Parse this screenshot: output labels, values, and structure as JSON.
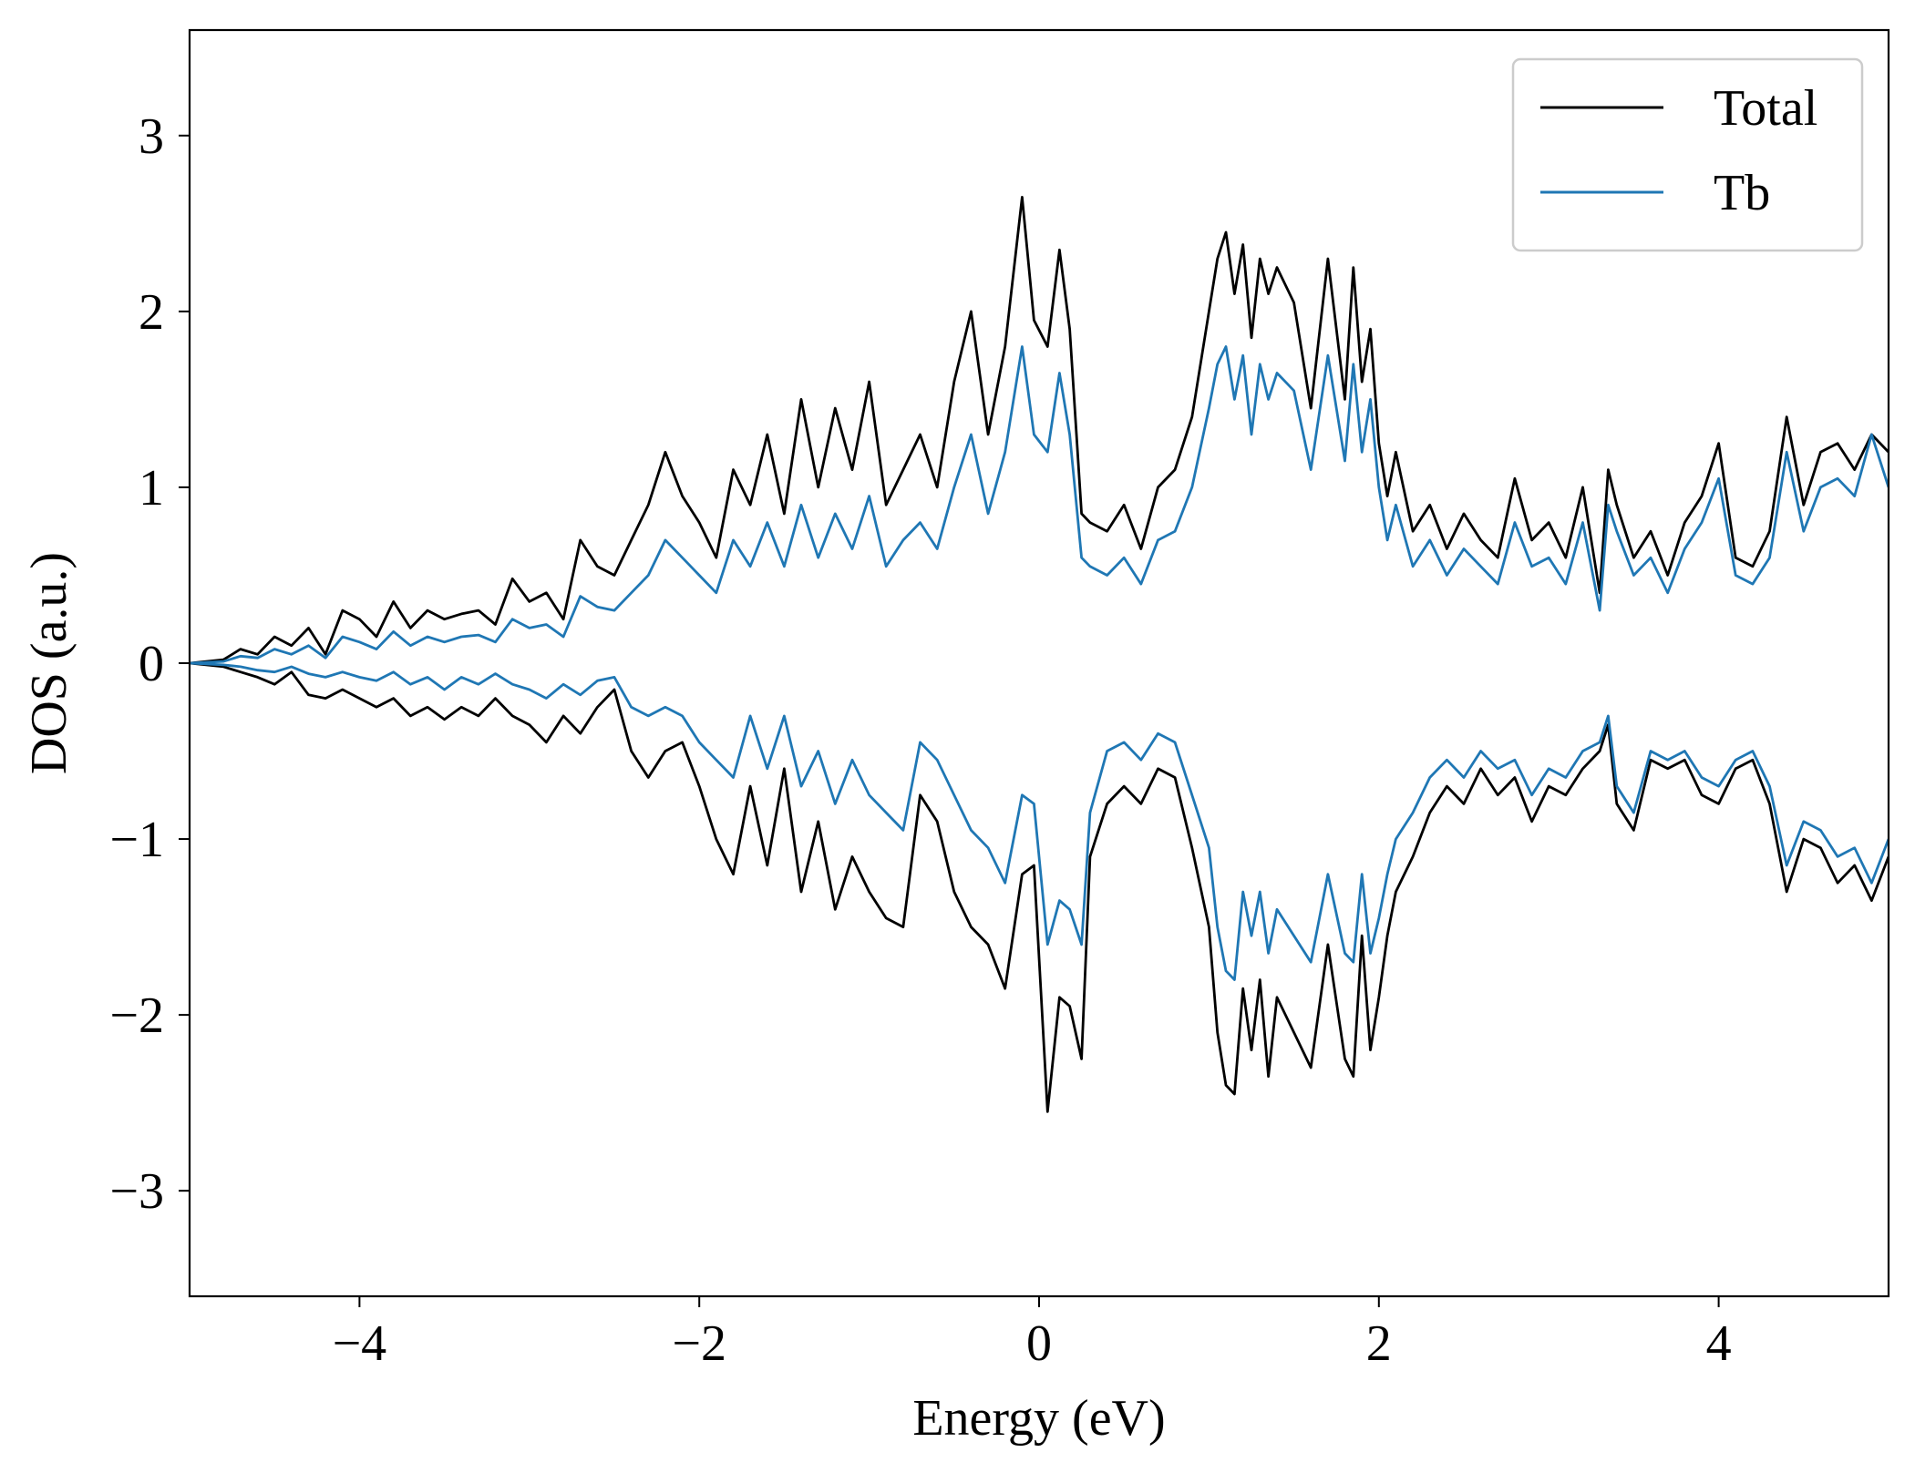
{
  "chart_data": {
    "type": "line",
    "title": "",
    "xlabel": "Energy (eV)",
    "ylabel": "DOS (a.u.)",
    "xlim": [
      -5,
      5
    ],
    "ylim": [
      -3.6,
      3.6
    ],
    "grid": false,
    "legend_position": "top-right",
    "x_ticks": [
      -4,
      -2,
      0,
      2,
      4
    ],
    "x_tick_labels": [
      "−4",
      "−2",
      "0",
      "2",
      "4"
    ],
    "y_ticks": [
      -3,
      -2,
      -1,
      0,
      1,
      2,
      3
    ],
    "y_tick_labels": [
      "−3",
      "−2",
      "−1",
      "0",
      "1",
      "2",
      "3"
    ],
    "series": [
      {
        "name": "Total",
        "color": "#000000",
        "spin_up": {
          "x": [
            -5.0,
            -4.8,
            -4.7,
            -4.6,
            -4.5,
            -4.4,
            -4.3,
            -4.2,
            -4.1,
            -4.0,
            -3.9,
            -3.8,
            -3.7,
            -3.6,
            -3.5,
            -3.4,
            -3.3,
            -3.2,
            -3.1,
            -3.0,
            -2.9,
            -2.8,
            -2.7,
            -2.6,
            -2.5,
            -2.4,
            -2.3,
            -2.2,
            -2.1,
            -2.0,
            -1.9,
            -1.8,
            -1.7,
            -1.6,
            -1.5,
            -1.4,
            -1.3,
            -1.2,
            -1.1,
            -1.0,
            -0.9,
            -0.8,
            -0.7,
            -0.6,
            -0.5,
            -0.4,
            -0.3,
            -0.2,
            -0.1,
            -0.03,
            0.05,
            0.12,
            0.18,
            0.25,
            0.3,
            0.4,
            0.5,
            0.6,
            0.7,
            0.8,
            0.9,
            1.0,
            1.05,
            1.1,
            1.15,
            1.2,
            1.25,
            1.3,
            1.35,
            1.4,
            1.5,
            1.6,
            1.7,
            1.8,
            1.85,
            1.9,
            1.95,
            2.0,
            2.05,
            2.1,
            2.2,
            2.3,
            2.4,
            2.5,
            2.6,
            2.7,
            2.8,
            2.9,
            3.0,
            3.1,
            3.2,
            3.3,
            3.35,
            3.4,
            3.5,
            3.6,
            3.7,
            3.8,
            3.9,
            4.0,
            4.1,
            4.2,
            4.3,
            4.4,
            4.5,
            4.6,
            4.7,
            4.8,
            4.9,
            5.0
          ],
          "y": [
            0.0,
            0.02,
            0.08,
            0.05,
            0.15,
            0.1,
            0.2,
            0.05,
            0.3,
            0.25,
            0.15,
            0.35,
            0.2,
            0.3,
            0.25,
            0.28,
            0.3,
            0.22,
            0.48,
            0.35,
            0.4,
            0.25,
            0.7,
            0.55,
            0.5,
            0.7,
            0.9,
            1.2,
            0.95,
            0.8,
            0.6,
            1.1,
            0.9,
            1.3,
            0.85,
            1.5,
            1.0,
            1.45,
            1.1,
            1.6,
            0.9,
            1.1,
            1.3,
            1.0,
            1.6,
            2.0,
            1.3,
            1.8,
            2.65,
            1.95,
            1.8,
            2.35,
            1.9,
            0.85,
            0.8,
            0.75,
            0.9,
            0.65,
            1.0,
            1.1,
            1.4,
            2.0,
            2.3,
            2.45,
            2.1,
            2.38,
            1.85,
            2.3,
            2.1,
            2.25,
            2.05,
            1.45,
            2.3,
            1.5,
            2.25,
            1.6,
            1.9,
            1.25,
            0.95,
            1.2,
            0.75,
            0.9,
            0.65,
            0.85,
            0.7,
            0.6,
            1.05,
            0.7,
            0.8,
            0.6,
            1.0,
            0.4,
            1.1,
            0.9,
            0.6,
            0.75,
            0.5,
            0.8,
            0.95,
            1.25,
            0.6,
            0.55,
            0.75,
            1.4,
            0.9,
            1.2,
            1.25,
            1.1,
            1.3,
            1.2
          ]
        },
        "spin_down": {
          "x": [
            -5.0,
            -4.8,
            -4.7,
            -4.6,
            -4.5,
            -4.4,
            -4.3,
            -4.2,
            -4.1,
            -4.0,
            -3.9,
            -3.8,
            -3.7,
            -3.6,
            -3.5,
            -3.4,
            -3.3,
            -3.2,
            -3.1,
            -3.0,
            -2.9,
            -2.8,
            -2.7,
            -2.6,
            -2.5,
            -2.4,
            -2.3,
            -2.2,
            -2.1,
            -2.0,
            -1.9,
            -1.8,
            -1.7,
            -1.6,
            -1.5,
            -1.4,
            -1.3,
            -1.2,
            -1.1,
            -1.0,
            -0.9,
            -0.8,
            -0.7,
            -0.6,
            -0.5,
            -0.4,
            -0.3,
            -0.2,
            -0.1,
            -0.03,
            0.05,
            0.12,
            0.18,
            0.25,
            0.3,
            0.4,
            0.5,
            0.6,
            0.7,
            0.8,
            0.9,
            1.0,
            1.05,
            1.1,
            1.15,
            1.2,
            1.25,
            1.3,
            1.35,
            1.4,
            1.5,
            1.6,
            1.7,
            1.8,
            1.85,
            1.9,
            1.95,
            2.0,
            2.05,
            2.1,
            2.2,
            2.3,
            2.4,
            2.5,
            2.6,
            2.7,
            2.8,
            2.9,
            3.0,
            3.1,
            3.2,
            3.3,
            3.35,
            3.4,
            3.5,
            3.6,
            3.7,
            3.8,
            3.9,
            4.0,
            4.1,
            4.2,
            4.3,
            4.4,
            4.5,
            4.6,
            4.7,
            4.8,
            4.9,
            5.0
          ],
          "y": [
            0.0,
            -0.02,
            -0.05,
            -0.08,
            -0.12,
            -0.05,
            -0.18,
            -0.2,
            -0.15,
            -0.2,
            -0.25,
            -0.2,
            -0.3,
            -0.25,
            -0.32,
            -0.25,
            -0.3,
            -0.2,
            -0.3,
            -0.35,
            -0.45,
            -0.3,
            -0.4,
            -0.25,
            -0.15,
            -0.5,
            -0.65,
            -0.5,
            -0.45,
            -0.7,
            -1.0,
            -1.2,
            -0.7,
            -1.15,
            -0.6,
            -1.3,
            -0.9,
            -1.4,
            -1.1,
            -1.3,
            -1.45,
            -1.5,
            -0.75,
            -0.9,
            -1.3,
            -1.5,
            -1.6,
            -1.85,
            -1.2,
            -1.15,
            -2.55,
            -1.9,
            -1.95,
            -2.25,
            -1.1,
            -0.8,
            -0.7,
            -0.8,
            -0.6,
            -0.65,
            -1.05,
            -1.5,
            -2.1,
            -2.4,
            -2.45,
            -1.85,
            -2.2,
            -1.8,
            -2.35,
            -1.9,
            -2.1,
            -2.3,
            -1.6,
            -2.25,
            -2.35,
            -1.55,
            -2.2,
            -1.9,
            -1.55,
            -1.3,
            -1.1,
            -0.85,
            -0.7,
            -0.8,
            -0.6,
            -0.75,
            -0.65,
            -0.9,
            -0.7,
            -0.75,
            -0.6,
            -0.5,
            -0.35,
            -0.8,
            -0.95,
            -0.55,
            -0.6,
            -0.55,
            -0.75,
            -0.8,
            -0.6,
            -0.55,
            -0.8,
            -1.3,
            -1.0,
            -1.05,
            -1.25,
            -1.15,
            -1.35,
            -1.1
          ]
        }
      },
      {
        "name": "Tb",
        "color": "#1f77b4",
        "spin_up": {
          "x": [
            -5.0,
            -4.8,
            -4.7,
            -4.6,
            -4.5,
            -4.4,
            -4.3,
            -4.2,
            -4.1,
            -4.0,
            -3.9,
            -3.8,
            -3.7,
            -3.6,
            -3.5,
            -3.4,
            -3.3,
            -3.2,
            -3.1,
            -3.0,
            -2.9,
            -2.8,
            -2.7,
            -2.6,
            -2.5,
            -2.4,
            -2.3,
            -2.2,
            -2.1,
            -2.0,
            -1.9,
            -1.8,
            -1.7,
            -1.6,
            -1.5,
            -1.4,
            -1.3,
            -1.2,
            -1.1,
            -1.0,
            -0.9,
            -0.8,
            -0.7,
            -0.6,
            -0.5,
            -0.4,
            -0.3,
            -0.2,
            -0.1,
            -0.03,
            0.05,
            0.12,
            0.18,
            0.25,
            0.3,
            0.4,
            0.5,
            0.6,
            0.7,
            0.8,
            0.9,
            1.0,
            1.05,
            1.1,
            1.15,
            1.2,
            1.25,
            1.3,
            1.35,
            1.4,
            1.5,
            1.6,
            1.7,
            1.8,
            1.85,
            1.9,
            1.95,
            2.0,
            2.05,
            2.1,
            2.2,
            2.3,
            2.4,
            2.5,
            2.6,
            2.7,
            2.8,
            2.9,
            3.0,
            3.1,
            3.2,
            3.3,
            3.35,
            3.4,
            3.5,
            3.6,
            3.7,
            3.8,
            3.9,
            4.0,
            4.1,
            4.2,
            4.3,
            4.4,
            4.5,
            4.6,
            4.7,
            4.8,
            4.9,
            5.0
          ],
          "y": [
            0.0,
            0.01,
            0.04,
            0.03,
            0.08,
            0.05,
            0.1,
            0.03,
            0.15,
            0.12,
            0.08,
            0.18,
            0.1,
            0.15,
            0.12,
            0.15,
            0.16,
            0.12,
            0.25,
            0.2,
            0.22,
            0.15,
            0.38,
            0.32,
            0.3,
            0.4,
            0.5,
            0.7,
            0.6,
            0.5,
            0.4,
            0.7,
            0.55,
            0.8,
            0.55,
            0.9,
            0.6,
            0.85,
            0.65,
            0.95,
            0.55,
            0.7,
            0.8,
            0.65,
            1.0,
            1.3,
            0.85,
            1.2,
            1.8,
            1.3,
            1.2,
            1.65,
            1.3,
            0.6,
            0.55,
            0.5,
            0.6,
            0.45,
            0.7,
            0.75,
            1.0,
            1.45,
            1.7,
            1.8,
            1.5,
            1.75,
            1.3,
            1.7,
            1.5,
            1.65,
            1.55,
            1.1,
            1.75,
            1.15,
            1.7,
            1.2,
            1.5,
            1.0,
            0.7,
            0.9,
            0.55,
            0.7,
            0.5,
            0.65,
            0.55,
            0.45,
            0.8,
            0.55,
            0.6,
            0.45,
            0.8,
            0.3,
            0.9,
            0.75,
            0.5,
            0.6,
            0.4,
            0.65,
            0.8,
            1.05,
            0.5,
            0.45,
            0.6,
            1.2,
            0.75,
            1.0,
            1.05,
            0.95,
            1.3,
            1.0
          ]
        },
        "spin_down": {
          "x": [
            -5.0,
            -4.8,
            -4.7,
            -4.6,
            -4.5,
            -4.4,
            -4.3,
            -4.2,
            -4.1,
            -4.0,
            -3.9,
            -3.8,
            -3.7,
            -3.6,
            -3.5,
            -3.4,
            -3.3,
            -3.2,
            -3.1,
            -3.0,
            -2.9,
            -2.8,
            -2.7,
            -2.6,
            -2.5,
            -2.4,
            -2.3,
            -2.2,
            -2.1,
            -2.0,
            -1.9,
            -1.8,
            -1.7,
            -1.6,
            -1.5,
            -1.4,
            -1.3,
            -1.2,
            -1.1,
            -1.0,
            -0.9,
            -0.8,
            -0.7,
            -0.6,
            -0.5,
            -0.4,
            -0.3,
            -0.2,
            -0.1,
            -0.03,
            0.05,
            0.12,
            0.18,
            0.25,
            0.3,
            0.4,
            0.5,
            0.6,
            0.7,
            0.8,
            0.9,
            1.0,
            1.05,
            1.1,
            1.15,
            1.2,
            1.25,
            1.3,
            1.35,
            1.4,
            1.5,
            1.6,
            1.7,
            1.8,
            1.85,
            1.9,
            1.95,
            2.0,
            2.05,
            2.1,
            2.2,
            2.3,
            2.4,
            2.5,
            2.6,
            2.7,
            2.8,
            2.9,
            3.0,
            3.1,
            3.2,
            3.3,
            3.35,
            3.4,
            3.5,
            3.6,
            3.7,
            3.8,
            3.9,
            4.0,
            4.1,
            4.2,
            4.3,
            4.4,
            4.5,
            4.6,
            4.7,
            4.8,
            4.9,
            5.0
          ],
          "y": [
            0.0,
            -0.01,
            -0.02,
            -0.04,
            -0.05,
            -0.02,
            -0.06,
            -0.08,
            -0.05,
            -0.08,
            -0.1,
            -0.05,
            -0.12,
            -0.08,
            -0.15,
            -0.08,
            -0.12,
            -0.06,
            -0.12,
            -0.15,
            -0.2,
            -0.12,
            -0.18,
            -0.1,
            -0.08,
            -0.25,
            -0.3,
            -0.25,
            -0.3,
            -0.45,
            -0.55,
            -0.65,
            -0.3,
            -0.6,
            -0.3,
            -0.7,
            -0.5,
            -0.8,
            -0.55,
            -0.75,
            -0.85,
            -0.95,
            -0.45,
            -0.55,
            -0.75,
            -0.95,
            -1.05,
            -1.25,
            -0.75,
            -0.8,
            -1.6,
            -1.35,
            -1.4,
            -1.6,
            -0.85,
            -0.5,
            -0.45,
            -0.55,
            -0.4,
            -0.45,
            -0.75,
            -1.05,
            -1.5,
            -1.75,
            -1.8,
            -1.3,
            -1.55,
            -1.3,
            -1.65,
            -1.4,
            -1.55,
            -1.7,
            -1.2,
            -1.65,
            -1.7,
            -1.2,
            -1.65,
            -1.45,
            -1.2,
            -1.0,
            -0.85,
            -0.65,
            -0.55,
            -0.65,
            -0.5,
            -0.6,
            -0.55,
            -0.75,
            -0.6,
            -0.65,
            -0.5,
            -0.45,
            -0.3,
            -0.7,
            -0.85,
            -0.5,
            -0.55,
            -0.5,
            -0.65,
            -0.7,
            -0.55,
            -0.5,
            -0.7,
            -1.15,
            -0.9,
            -0.95,
            -1.1,
            -1.05,
            -1.25,
            -1.0
          ]
        }
      }
    ]
  }
}
